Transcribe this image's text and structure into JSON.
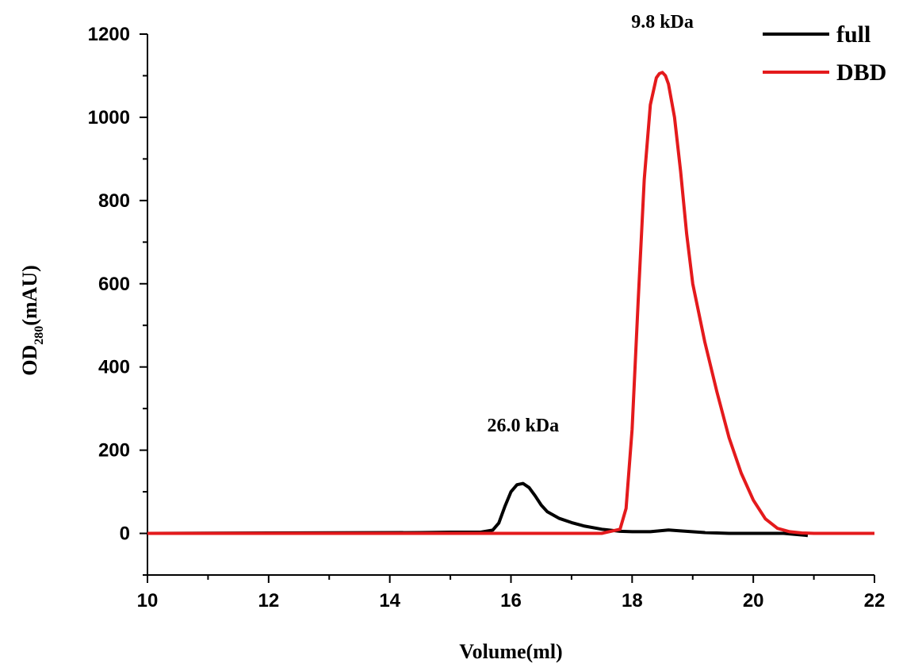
{
  "chart_data": {
    "type": "line",
    "xlabel": "Volume(ml)",
    "ylabel_main": "OD",
    "ylabel_sub": "280",
    "ylabel_tail": "(mAU)",
    "xlim": [
      10,
      22
    ],
    "ylim": [
      -100,
      1200
    ],
    "x_ticks": [
      10,
      12,
      14,
      16,
      18,
      20,
      22
    ],
    "y_ticks": [
      0,
      200,
      400,
      600,
      800,
      1000,
      1200
    ],
    "grid": false,
    "legend_position": "top-right",
    "annotations": [
      {
        "text": "9.8 kDa",
        "x": 18.5,
        "y": 1200
      },
      {
        "text": "26.0 kDa",
        "x": 16.2,
        "y": 230
      }
    ],
    "series": [
      {
        "name": "full",
        "color": "#000000",
        "x": [
          10.0,
          14.5,
          15.0,
          15.5,
          15.7,
          15.8,
          15.9,
          16.0,
          16.1,
          16.2,
          16.3,
          16.4,
          16.5,
          16.6,
          16.8,
          17.0,
          17.2,
          17.5,
          17.8,
          18.0,
          18.3,
          18.6,
          18.8,
          19.2,
          19.6,
          20.0,
          20.5,
          20.9
        ],
        "y": [
          0,
          2,
          3,
          3,
          8,
          25,
          65,
          100,
          117,
          120,
          110,
          90,
          68,
          52,
          36,
          26,
          18,
          10,
          5,
          4,
          4,
          8,
          6,
          2,
          0,
          0,
          0,
          -5
        ]
      },
      {
        "name": "DBD",
        "color": "#e41a1c",
        "x": [
          10.0,
          14.0,
          16.0,
          17.5,
          17.8,
          17.9,
          18.0,
          18.1,
          18.2,
          18.3,
          18.4,
          18.45,
          18.5,
          18.55,
          18.6,
          18.7,
          18.8,
          18.9,
          19.0,
          19.2,
          19.4,
          19.6,
          19.8,
          20.0,
          20.2,
          20.4,
          20.6,
          20.8,
          21.0,
          22.0
        ],
        "y": [
          0,
          0,
          0,
          0,
          10,
          60,
          250,
          560,
          850,
          1030,
          1095,
          1105,
          1108,
          1100,
          1080,
          1000,
          870,
          720,
          600,
          460,
          340,
          230,
          145,
          80,
          35,
          12,
          4,
          1,
          0,
          0
        ]
      }
    ]
  }
}
